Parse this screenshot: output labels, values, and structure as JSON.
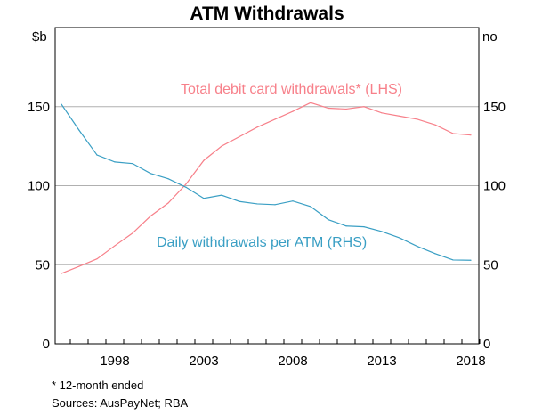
{
  "chart_data": {
    "type": "line",
    "title": "ATM Withdrawals",
    "ylabel_left": "$b",
    "ylabel_right": "no",
    "ylim": [
      0,
      200
    ],
    "yticks": [
      0,
      50,
      100,
      150
    ],
    "xlim": [
      1994.7,
      2018.5
    ],
    "xticks": [
      1998,
      2003,
      2008,
      2013,
      2018
    ],
    "grid": true,
    "x": [
      1995,
      1996,
      1997,
      1998,
      1999,
      2000,
      2001,
      2002,
      2003,
      2004,
      2005,
      2006,
      2007,
      2008,
      2009,
      2010,
      2011,
      2012,
      2013,
      2014,
      2015,
      2016,
      2017,
      2018
    ],
    "series": [
      {
        "name": "Total debit card withdrawals* (LHS)",
        "color": "#f7808a",
        "values": [
          44.5,
          49,
          53.7,
          62,
          70,
          80.7,
          89,
          101,
          116,
          125,
          131,
          137,
          142,
          147,
          152.5,
          149,
          148.5,
          150,
          146,
          144,
          142,
          138.5,
          133,
          132
        ]
      },
      {
        "name": "Daily withdrawals per ATM (RHS)",
        "color": "#3a9fc4",
        "values": [
          151.5,
          135,
          119.4,
          115,
          114,
          107.8,
          104.4,
          99,
          92,
          94,
          90,
          88.5,
          88,
          90.3,
          86.8,
          78.5,
          74.5,
          74,
          71,
          67,
          61.6,
          57,
          53,
          52.8
        ]
      }
    ],
    "footnote": "*      12-month ended",
    "sources": "Sources:   AusPayNet; RBA"
  }
}
